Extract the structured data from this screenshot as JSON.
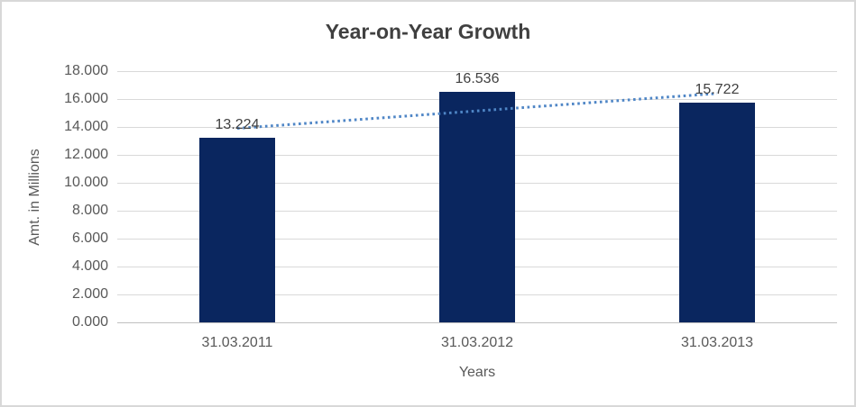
{
  "chart_data": {
    "type": "bar",
    "title": "Year-on-Year Growth",
    "xlabel": "Years",
    "ylabel": "Amt. in Millions",
    "categories": [
      "31.03.2011",
      "31.03.2012",
      "31.03.2013"
    ],
    "values": [
      13.224,
      16.536,
      15.722
    ],
    "value_labels": [
      "13.224",
      "16.536",
      "15.722"
    ],
    "ylim": [
      0,
      18
    ],
    "ytick_step": 2,
    "ytick_labels": [
      "0.000",
      "2.000",
      "4.000",
      "6.000",
      "8.000",
      "10.000",
      "12.000",
      "14.000",
      "16.000",
      "18.000"
    ],
    "grid": true,
    "legend_position": "none",
    "trendline": {
      "type": "linear",
      "style": "dotted",
      "start_value": 13.9,
      "end_value": 16.4
    },
    "colors": {
      "bar": "#0a265f",
      "trendline": "#4f86c6",
      "gridline": "#d9d9d9",
      "axis_line": "#bfbfbf",
      "title_text": "#404040",
      "tick_text": "#595959",
      "value_label_text": "#404040",
      "frame_border": "#d8d8d8",
      "background": "#ffffff"
    }
  }
}
